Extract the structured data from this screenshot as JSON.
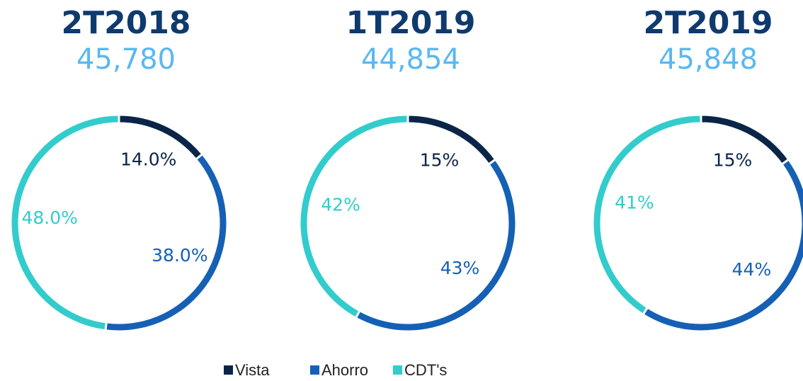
{
  "chart_data": [
    {
      "type": "donut",
      "title": "2T2018",
      "subtitle": "45,780",
      "categories": [
        "Vista",
        "Ahorro",
        "CDT's"
      ],
      "values": [
        14.0,
        38.0,
        48.0
      ],
      "value_labels": [
        "14.0%",
        "38.0%",
        "48.0%"
      ],
      "colors": [
        "#0b2548",
        "#1560b5",
        "#33cccc"
      ],
      "legend": "bottom"
    },
    {
      "type": "donut",
      "title": "1T2019",
      "subtitle": "44,854",
      "categories": [
        "Vista",
        "Ahorro",
        "CDT's"
      ],
      "values": [
        15,
        43,
        42
      ],
      "value_labels": [
        "15%",
        "43%",
        "42%"
      ],
      "colors": [
        "#0b2548",
        "#1560b5",
        "#33cccc"
      ]
    },
    {
      "type": "donut",
      "title": "2T2019",
      "subtitle": "45,848",
      "categories": [
        "Vista",
        "Ahorro",
        "CDT's"
      ],
      "values": [
        15,
        44,
        41
      ],
      "value_labels": [
        "15%",
        "44%",
        "41%"
      ],
      "colors": [
        "#0b2548",
        "#1560b5",
        "#33cccc"
      ]
    }
  ]
}
